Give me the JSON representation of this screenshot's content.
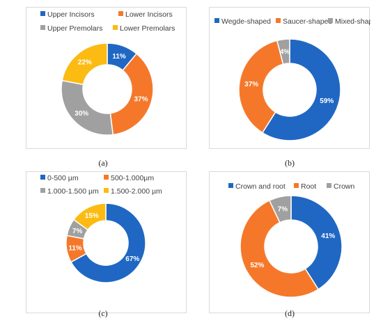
{
  "colors": {
    "blue": "#1f67c3",
    "orange": "#f5782a",
    "gray": "#a0a0a0",
    "yellow": "#fbbb13"
  },
  "chart_data": [
    {
      "type": "donut",
      "caption": "(a)",
      "legend": [
        "Upper Incisors",
        "Lower Incisors",
        "Upper Premolars",
        "Lower Premolars"
      ],
      "series": [
        {
          "name": "Upper Incisors",
          "value": 11,
          "label": "11%",
          "color": "#1f67c3"
        },
        {
          "name": "Lower Incisors",
          "value": 37,
          "label": "37%",
          "color": "#f5782a"
        },
        {
          "name": "Upper Premolars",
          "value": 30,
          "label": "30%",
          "color": "#a0a0a0"
        },
        {
          "name": "Lower Premolars",
          "value": 22,
          "label": "22%",
          "color": "#fbbb13"
        }
      ]
    },
    {
      "type": "donut",
      "caption": "(b)",
      "legend": [
        "Wegde-shaped",
        "Saucer-shaped",
        "Mixed-shaped"
      ],
      "series": [
        {
          "name": "Wegde-shaped",
          "value": 59,
          "label": "59%",
          "color": "#1f67c3"
        },
        {
          "name": "Saucer-shaped",
          "value": 37,
          "label": "37%",
          "color": "#f5782a"
        },
        {
          "name": "Mixed-shaped",
          "value": 4,
          "label": "4%",
          "color": "#a0a0a0"
        }
      ]
    },
    {
      "type": "donut",
      "caption": "(c)",
      "legend": [
        "0-500 µm",
        "500-1.000µm",
        "1.000-1.500 µm",
        "1.500-2.000 µm"
      ],
      "series": [
        {
          "name": "0-500 µm",
          "value": 67,
          "label": "67%",
          "color": "#1f67c3"
        },
        {
          "name": "500-1.000µm",
          "value": 11,
          "label": "11%",
          "color": "#f5782a"
        },
        {
          "name": "1.000-1.500 µm",
          "value": 7,
          "label": "7%",
          "color": "#a0a0a0"
        },
        {
          "name": "1.500-2.000 µm",
          "value": 15,
          "label": "15%",
          "color": "#fbbb13"
        }
      ]
    },
    {
      "type": "donut",
      "caption": "(d)",
      "legend": [
        "Crown and root",
        "Root",
        "Crown"
      ],
      "series": [
        {
          "name": "Crown and root",
          "value": 41,
          "label": "41%",
          "color": "#1f67c3"
        },
        {
          "name": "Root",
          "value": 52,
          "label": "52%",
          "color": "#f5782a"
        },
        {
          "name": "Crown",
          "value": 7,
          "label": "7%",
          "color": "#a0a0a0"
        }
      ]
    }
  ]
}
